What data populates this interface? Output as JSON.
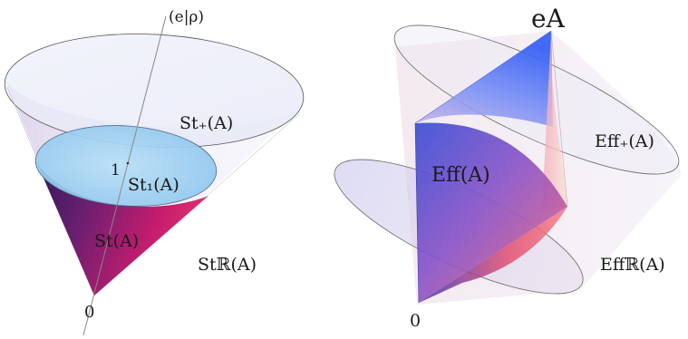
{
  "left_panel": {
    "axis_label": "(e|ρ)",
    "unit_tick": "1",
    "origin": "0",
    "outer_cone": "St₊(A)",
    "normalized_slice": "St₁(A)",
    "state_set": "St(A)",
    "real_space": "Stℝ(A)"
  },
  "right_panel": {
    "unit_effect": "eA",
    "effect_set": "Eff(A)",
    "positive_cone": "Eff₊(A)",
    "real_space": "Effℝ(A)",
    "origin": "0"
  },
  "colors": {
    "cone_fill": "#e6e6f5",
    "slice_fill": "#a8d4f2",
    "state_dark": "#4b1d5c",
    "state_bright": "#d41c6a",
    "effect_blue": "#3f63ee",
    "effect_pink": "#ef5a78",
    "outline": "#555555"
  }
}
